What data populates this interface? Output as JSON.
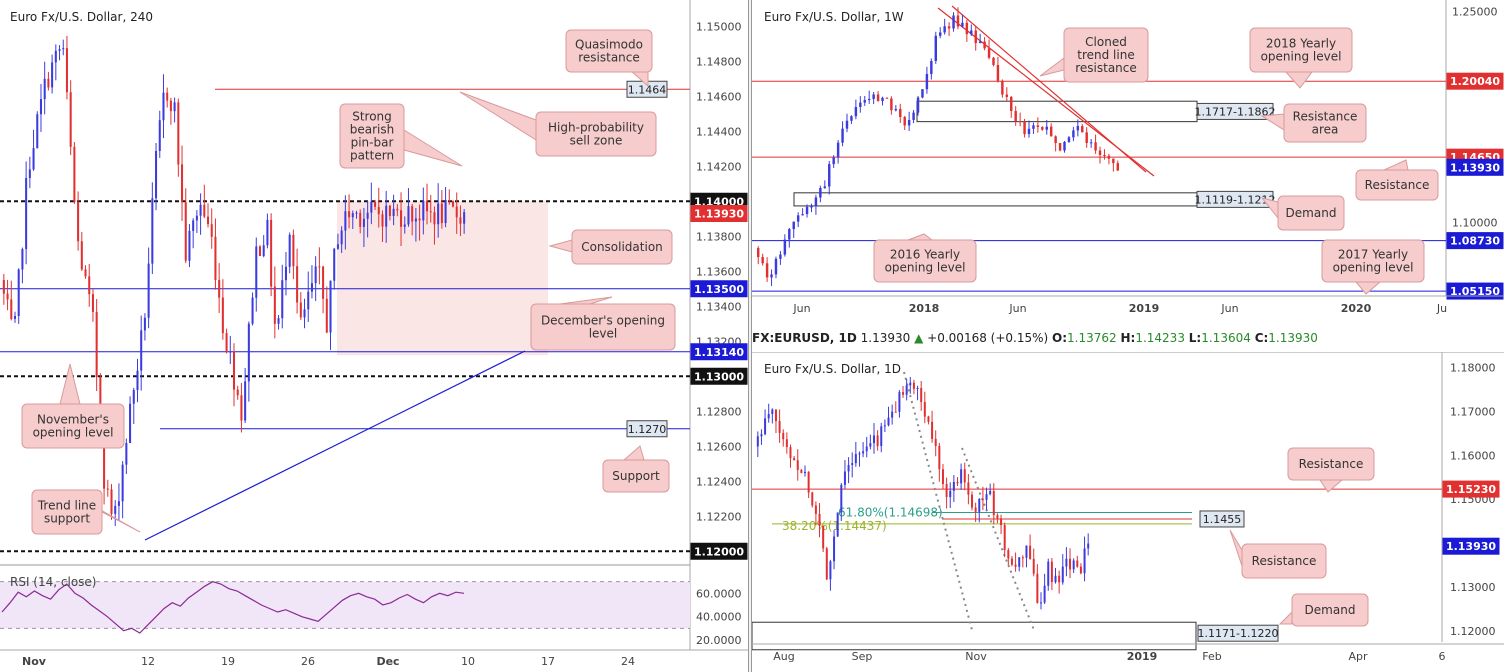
{
  "colors": {
    "up": "#3b3be0",
    "down": "#e23030",
    "accent_red": "#e23030",
    "accent_blue": "#1b1bd6"
  },
  "ohlc_bar": {
    "symbol": "FX:EURUSD, 1D",
    "price": "1.13930",
    "change": "+0.00168 (+0.15%)",
    "o_label": "O:",
    "o": "1.13762",
    "h_label": "H:",
    "h": "1.14233",
    "l_label": "L:",
    "l": "1.13604",
    "c_label": "C:",
    "c": "1.13930"
  },
  "chart_data": [
    {
      "type": "candlestick",
      "title": "Euro Fx/U.S. Dollar, 240",
      "ylim": [
        1.1195,
        1.1515
      ],
      "y_ticks": [
        "1.15000",
        "1.14800",
        "1.14600",
        "1.14400",
        "1.14200",
        "1.13800",
        "1.13600",
        "1.13400",
        "1.13200",
        "1.12800",
        "1.12600",
        "1.12400",
        "1.12200"
      ],
      "x_ticks": [
        "Nov",
        "12",
        "19",
        "26",
        "Dec",
        "10",
        "17",
        "24"
      ],
      "levels": [
        {
          "value": 1.1464,
          "label": "1.1464",
          "style": "red-line"
        },
        {
          "value": 1.14,
          "label": "1.14000",
          "style": "black-dashed"
        },
        {
          "value": 1.1393,
          "label": "1.13930",
          "style": "price"
        },
        {
          "value": 1.135,
          "label": "1.13500",
          "style": "blue-line"
        },
        {
          "value": 1.1314,
          "label": "1.13140",
          "style": "blue-line"
        },
        {
          "value": 1.13,
          "label": "1.13000",
          "style": "black-dashed"
        },
        {
          "value": 1.127,
          "label": "1.1270",
          "style": "blue-line"
        },
        {
          "value": 1.12,
          "label": "1.12000",
          "style": "black-dashed"
        }
      ],
      "annotations": [
        "Quasimodo resistance",
        "High-probability sell zone",
        "Strong bearish pin-bar pattern",
        "Consolidation",
        "December's opening level",
        "November's opening level",
        "Support",
        "Trend line support"
      ],
      "rsi": {
        "label": "RSI (14, close)",
        "ticks": [
          "60.0000",
          "40.0000",
          "20.0000"
        ],
        "values": [
          44,
          52,
          61,
          57,
          62,
          58,
          55,
          63,
          68,
          60,
          56,
          50,
          45,
          40,
          34,
          28,
          30,
          26,
          33,
          40,
          47,
          52,
          49,
          56,
          61,
          66,
          70,
          68,
          64,
          62,
          58,
          54,
          50,
          47,
          44,
          46,
          43,
          40,
          38,
          36,
          42,
          48,
          54,
          58,
          60,
          57,
          55,
          50,
          52,
          56,
          59,
          55,
          52,
          57,
          60,
          58,
          61,
          60
        ]
      }
    },
    {
      "type": "candlestick",
      "title": "Euro Fx/U.S. Dollar, 1W",
      "ylim": [
        1.048,
        1.258
      ],
      "y_ticks": [
        "1.25000",
        "1.10000"
      ],
      "x_ticks": [
        "Jun",
        "2018",
        "Jun",
        "2019",
        "Jun",
        "2020",
        "Ju"
      ],
      "levels": [
        {
          "value": 1.2004,
          "label": "1.20040",
          "style": "red-line"
        },
        {
          "value": 1.1465,
          "label": "1.14650",
          "style": "red-line"
        },
        {
          "value": 1.1393,
          "label": "1.13930",
          "style": "price"
        },
        {
          "value": 1.0873,
          "label": "1.08730",
          "style": "blue-line"
        },
        {
          "value": 1.0515,
          "label": "1.05150",
          "style": "blue-line"
        }
      ],
      "zones": [
        {
          "label": "1.1717-1.1862",
          "low": 1.1717,
          "high": 1.1862
        },
        {
          "label": "1.1119-1.1212",
          "low": 1.1119,
          "high": 1.1212
        }
      ],
      "annotations": [
        "Cloned trend line resistance",
        "2018 Yearly opening level",
        "Resistance area",
        "Resistance",
        "Demand",
        "2016 Yearly opening level",
        "2017 Yearly opening level"
      ]
    },
    {
      "type": "candlestick",
      "title": "Euro Fx/U.S. Dollar, 1D",
      "ylim": [
        1.1175,
        1.1835
      ],
      "y_ticks": [
        "1.18000",
        "1.17000",
        "1.16000",
        "1.15000",
        "1.13000",
        "1.12000"
      ],
      "x_ticks": [
        "Aug",
        "Sep",
        "Nov",
        "2019",
        "Feb",
        "Apr",
        "6"
      ],
      "levels": [
        {
          "value": 1.1523,
          "label": "1.15230",
          "style": "red-line"
        },
        {
          "value": 1.1455,
          "label": "1.1455",
          "style": "red-line"
        },
        {
          "value": 1.1393,
          "label": "1.13930",
          "style": "price"
        }
      ],
      "fib": [
        {
          "label": "61.80%(1.14698)",
          "value": 1.14698
        },
        {
          "label": "38.20%(1.14437)",
          "value": 1.14437
        }
      ],
      "zones": [
        {
          "label": "1.1171-1.1220",
          "low": 1.1171,
          "high": 1.122
        }
      ],
      "annotations": [
        "Resistance",
        "Resistance",
        "Demand"
      ]
    }
  ]
}
